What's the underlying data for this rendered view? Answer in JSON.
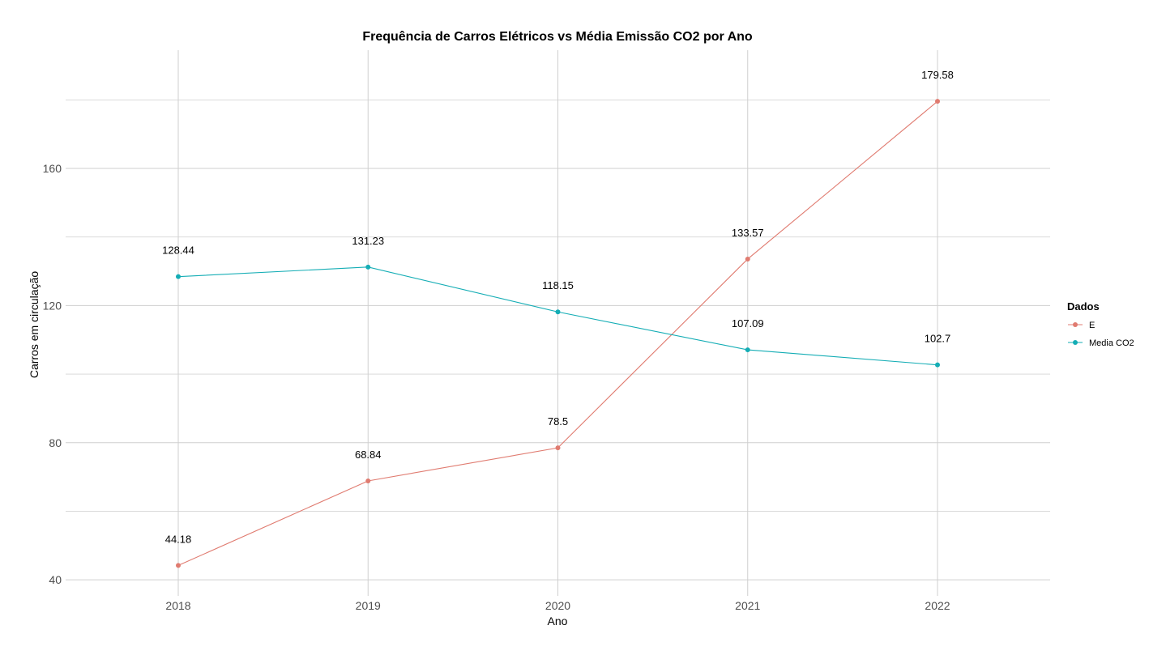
{
  "chart_data": {
    "type": "line",
    "title": "Frequência de Carros Elétricos vs Média Emissão CO2 por Ano",
    "xlabel": "Ano",
    "ylabel": "Carros em circulação",
    "categories": [
      "2018",
      "2019",
      "2020",
      "2021",
      "2022"
    ],
    "series": [
      {
        "name": "E",
        "color": "#e07b70",
        "values": [
          44.18,
          68.84,
          78.5,
          133.57,
          179.58
        ],
        "labels": [
          "44.18",
          "68.84",
          "78.5",
          "133.57",
          "179.58"
        ]
      },
      {
        "name": "Media CO2",
        "color": "#14adb5",
        "values": [
          128.44,
          131.23,
          118.15,
          107.09,
          102.7
        ],
        "labels": [
          "128.44",
          "131.23",
          "118.15",
          "107.09",
          "102.7"
        ]
      }
    ],
    "ylim": [
      35.3,
      194.5
    ],
    "yticks": [
      40,
      80,
      120,
      160
    ],
    "yticks_labels": [
      "40",
      "80",
      "120",
      "160"
    ],
    "grid": true,
    "legend": {
      "title": "Dados",
      "position": "right"
    }
  }
}
